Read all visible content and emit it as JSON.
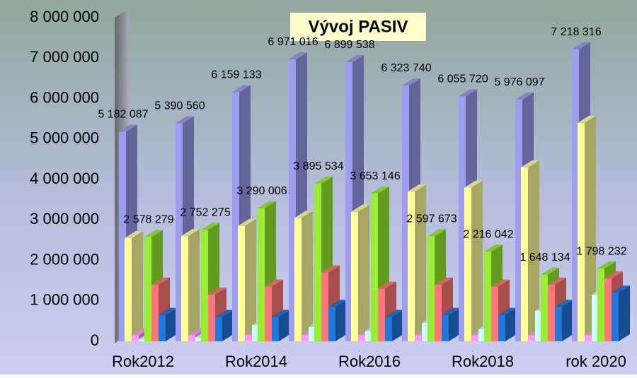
{
  "chart_data": {
    "type": "bar3d",
    "title": "Vývoj PASIV",
    "categories": [
      "Rok2012",
      null,
      "Rok2014",
      null,
      "Rok2016",
      null,
      "Rok2018",
      null,
      "rok 2020"
    ],
    "series": [
      {
        "color": "#9c9cf0",
        "values": [
          5182087,
          5390560,
          6159133,
          6971016,
          6899538,
          6323740,
          6055720,
          5976097,
          7218316
        ],
        "value_labels": [
          "5 182 087",
          "5 390 560",
          "6 159 133",
          "6 971 016",
          "6 899 538",
          "6 323 740",
          "6 055 720",
          "5 976 097",
          "7 218 316"
        ]
      },
      {
        "color": "#ffff99",
        "values": [
          2550000,
          2600000,
          2850000,
          3050000,
          3200000,
          3700000,
          3800000,
          4300000,
          5400000
        ]
      },
      {
        "color": "#ff99ff",
        "values": [
          150000,
          150000,
          150000,
          150000,
          150000,
          150000,
          150000,
          150000,
          150000
        ]
      },
      {
        "color": "#ccffff",
        "values": [
          50000,
          100000,
          400000,
          350000,
          250000,
          450000,
          300000,
          750000,
          1150000
        ]
      },
      {
        "color": "#99ee33",
        "values": [
          2578279,
          2752275,
          3290006,
          3895534,
          3653146,
          2597673,
          2216042,
          1648134,
          1798232
        ],
        "value_labels": [
          "2 578 279",
          "2 752 275",
          "3 290 006",
          "3 895 534",
          "3 653 146",
          "2 597 673",
          "2 216 042",
          "1 648 134",
          "1 798 232"
        ]
      },
      {
        "color": "#ff7777",
        "values": [
          1400000,
          1150000,
          1350000,
          1700000,
          1300000,
          1400000,
          1350000,
          1400000,
          1550000
        ]
      },
      {
        "color": "#2277dd",
        "values": [
          650000,
          600000,
          600000,
          850000,
          600000,
          650000,
          650000,
          850000,
          1200000
        ]
      }
    ],
    "ylim": [
      0,
      8000000
    ],
    "yticks": [
      0,
      {
        "value": 1000000,
        "label": "1 000 000"
      },
      {
        "value": 2000000,
        "label": "2 000 000"
      },
      {
        "value": 3000000,
        "label": "3 000 000"
      },
      {
        "value": 4000000,
        "label": "4 000 000"
      },
      {
        "value": 5000000,
        "label": "5 000 000"
      },
      {
        "value": 6000000,
        "label": "6 000 000"
      },
      {
        "value": 7000000,
        "label": "7 000 000"
      },
      {
        "value": 8000000,
        "label": "8 000 000"
      }
    ]
  }
}
